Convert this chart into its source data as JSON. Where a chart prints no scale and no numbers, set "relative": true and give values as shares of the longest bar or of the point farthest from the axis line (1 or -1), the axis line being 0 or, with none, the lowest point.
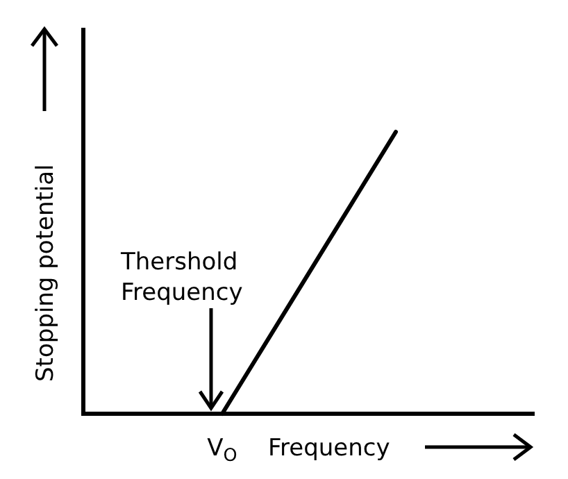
{
  "chart_data": {
    "type": "line",
    "relative": true,
    "xlabel": "Frequency",
    "ylabel": "Stopping potential",
    "categories": [
      null,
      null,
      null,
      null,
      null,
      null,
      null,
      null,
      null,
      null,
      null,
      null,
      null,
      null
    ],
    "series": [
      {
        "color": "#000000",
        "values": [
          null,
          null,
          null,
          null,
          0,
          0.2,
          0.4,
          0.6,
          0.8,
          1,
          null,
          null,
          null,
          null
        ]
      }
    ],
    "annotations": [
      "Thershold\nFrequency",
      "V$_{O}$"
    ]
  }
}
